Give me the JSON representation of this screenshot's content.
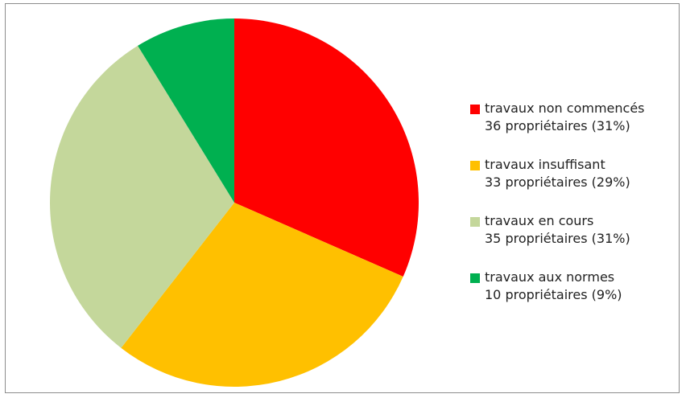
{
  "chart_data": {
    "type": "pie",
    "title": "",
    "slices": [
      {
        "label": "travaux non commencés",
        "detail": "36 propriétaires (31%)",
        "value": 36,
        "percent": 31,
        "color": "#ff0000"
      },
      {
        "label": "travaux insuffisant",
        "detail": "33 propriétaires (29%)",
        "value": 33,
        "percent": 29,
        "color": "#ffc000"
      },
      {
        "label": "travaux en cours",
        "detail": "35 propriétaires (31%)",
        "value": 35,
        "percent": 31,
        "color": "#c4d79b"
      },
      {
        "label": "travaux aux normes",
        "detail": "10 propriétaires (9%)",
        "value": 10,
        "percent": 9,
        "color": "#00b050"
      }
    ],
    "start_angle_deg": 0,
    "direction": "clockwise",
    "legend_position": "right"
  },
  "legend": {
    "items": [
      {
        "label": "travaux non commencés",
        "detail": "36 propriétaires (31%)",
        "color": "#ff0000"
      },
      {
        "label": "travaux insuffisant",
        "detail": "33 propriétaires (29%)",
        "color": "#ffc000"
      },
      {
        "label": "travaux en cours",
        "detail": "35 propriétaires (31%)",
        "color": "#c4d79b"
      },
      {
        "label": "travaux aux normes",
        "detail": "10 propriétaires (9%)",
        "color": "#00b050"
      }
    ]
  }
}
